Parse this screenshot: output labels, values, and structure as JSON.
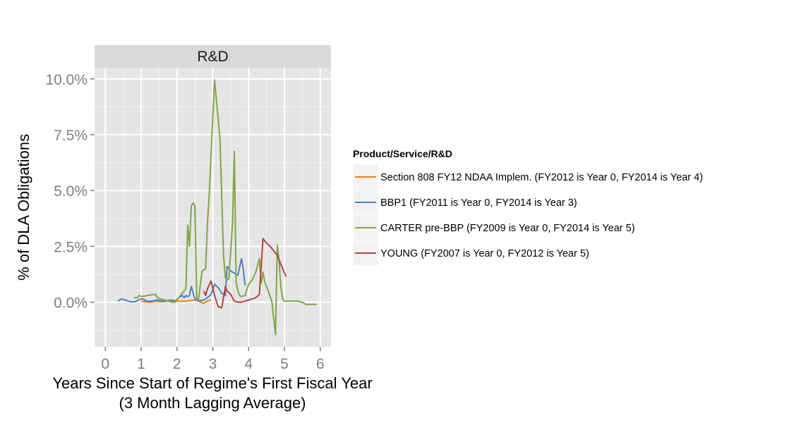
{
  "chart_data": {
    "type": "line",
    "facet_label": "R&D",
    "xlabel": "Years Since Start of Regime's First Fiscal Year",
    "xlabel_line2": "(3 Month Lagging Average)",
    "ylabel": "% of DLA Obligations",
    "xlim": [
      -0.3,
      6.3
    ],
    "ylim": [
      -2.0,
      10.5
    ],
    "x_ticks": [
      0,
      1,
      2,
      3,
      4,
      5,
      6
    ],
    "x_tick_labels": [
      "0",
      "1",
      "2",
      "3",
      "4",
      "5",
      "6"
    ],
    "y_ticks": [
      0.0,
      2.5,
      5.0,
      7.5,
      10.0
    ],
    "y_tick_labels": [
      "0.0%",
      "2.5%",
      "5.0%",
      "7.5%",
      "10.0%"
    ],
    "grid": true,
    "legend": {
      "title": "Product/Service/R&D",
      "placement": "right"
    },
    "series": [
      {
        "name": "Section 808 FY12 NDAA Implem. (FY2012 is Year 0, FY2014 is Year 4)",
        "color": "#E8811A",
        "x": [
          1.0,
          1.1,
          1.25,
          1.4,
          1.5,
          1.6,
          1.75,
          1.9,
          2.0,
          2.1,
          2.25,
          2.4,
          2.5,
          2.6,
          2.75,
          2.85,
          2.95
        ],
        "y": [
          0.05,
          0.02,
          0.0,
          0.05,
          0.03,
          0.02,
          0.05,
          0.02,
          0.05,
          0.04,
          0.05,
          0.08,
          0.1,
          0.05,
          -0.05,
          0.05,
          0.1
        ]
      },
      {
        "name": "BBP1 (FY2011 is Year 0, FY2014 is Year 3)",
        "color": "#4F81BD",
        "x": [
          0.35,
          0.45,
          0.55,
          0.7,
          0.85,
          0.95,
          1.05,
          1.15,
          1.3,
          1.45,
          1.6,
          1.75,
          1.85,
          1.95,
          2.05,
          2.15,
          2.2,
          2.25,
          2.3,
          2.35,
          2.4,
          2.5,
          2.6,
          2.75,
          2.85,
          2.95,
          3.05,
          3.15,
          3.25,
          3.35,
          3.4,
          3.5,
          3.6,
          3.7,
          3.8,
          3.85,
          3.9
        ],
        "y": [
          0.05,
          0.15,
          0.1,
          0.02,
          0.02,
          0.12,
          0.15,
          0.05,
          0.05,
          0.1,
          0.05,
          0.08,
          0.1,
          0.05,
          0.2,
          0.3,
          0.2,
          0.3,
          0.25,
          0.3,
          0.7,
          0.15,
          0.05,
          0.1,
          0.2,
          0.35,
          0.8,
          0.65,
          0.4,
          0.3,
          1.6,
          1.4,
          1.3,
          1.2,
          1.95,
          1.5,
          0.75
        ]
      },
      {
        "name": "CARTER pre-BBP (FY2009 is Year 0, FY2014 is Year 5)",
        "color": "#83A446",
        "x": [
          0.8,
          0.9,
          0.95,
          1.0,
          1.35,
          1.4,
          1.45,
          1.55,
          1.65,
          1.75,
          1.85,
          1.95,
          2.05,
          2.15,
          2.25,
          2.3,
          2.35,
          2.4,
          2.45,
          2.5,
          2.55,
          2.6,
          2.7,
          2.8,
          2.85,
          2.9,
          3.05,
          3.2,
          3.3,
          3.35,
          3.4,
          3.45,
          3.55,
          3.6,
          3.65,
          3.7,
          3.75,
          3.8,
          3.9,
          4.0,
          4.1,
          4.2,
          4.3,
          4.35,
          4.4,
          4.45,
          4.55,
          4.65,
          4.75,
          4.8,
          4.85,
          4.9,
          4.95,
          5.0,
          5.05,
          5.25,
          5.35,
          5.5,
          5.6,
          5.9
        ],
        "y": [
          0.2,
          0.2,
          0.3,
          0.25,
          0.35,
          0.35,
          0.2,
          0.15,
          0.1,
          0.05,
          0.0,
          0.0,
          0.2,
          0.4,
          0.6,
          3.45,
          2.5,
          4.3,
          4.45,
          4.3,
          0.2,
          0.1,
          1.4,
          1.5,
          3.5,
          4.8,
          9.95,
          7.3,
          2.1,
          1.1,
          1.0,
          1.05,
          3.5,
          6.75,
          0.9,
          0.5,
          0.3,
          0.25,
          0.3,
          0.8,
          1.0,
          1.35,
          1.95,
          0.85,
          1.35,
          0.9,
          0.5,
          0.0,
          -1.45,
          2.55,
          1.85,
          0.7,
          0.15,
          0.05,
          0.05,
          0.05,
          0.05,
          0.0,
          -0.1,
          -0.1
        ]
      },
      {
        "name": "YOUNG (FY2007 is Year 0, FY2012 is Year 5)",
        "color": "#B14542",
        "x": [
          2.75,
          2.8,
          2.85,
          2.95,
          3.05,
          3.15,
          3.25,
          3.35,
          3.4,
          3.5,
          3.6,
          3.7,
          3.8,
          3.9,
          4.0,
          4.1,
          4.2,
          4.3,
          4.4,
          4.5,
          4.6,
          4.7,
          4.8,
          4.9,
          5.0,
          5.05
        ],
        "y": [
          0.5,
          0.3,
          0.6,
          0.95,
          0.3,
          -0.2,
          -0.25,
          0.7,
          0.5,
          0.35,
          0.05,
          0.0,
          0.0,
          0.05,
          0.1,
          0.15,
          0.2,
          0.35,
          2.85,
          2.65,
          2.5,
          2.3,
          2.1,
          1.7,
          1.3,
          1.15
        ]
      }
    ]
  }
}
